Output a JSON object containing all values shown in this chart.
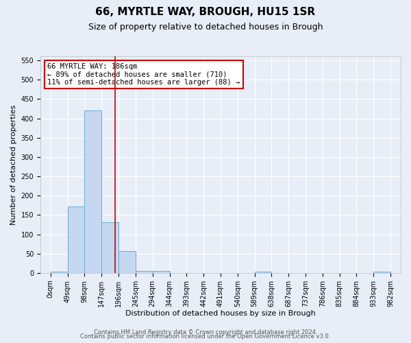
{
  "title1": "66, MYRTLE WAY, BROUGH, HU15 1SR",
  "title2": "Size of property relative to detached houses in Brough",
  "xlabel": "Distribution of detached houses by size in Brough",
  "ylabel": "Number of detached properties",
  "bin_edges": [
    0,
    49,
    98,
    147,
    196,
    245,
    294,
    343,
    392,
    441,
    490,
    539,
    588,
    637,
    686,
    735,
    784,
    833,
    882,
    931,
    980,
    1029
  ],
  "bar_heights": [
    3,
    172,
    420,
    132,
    57,
    5,
    5,
    0,
    0,
    0,
    0,
    0,
    4,
    0,
    0,
    0,
    0,
    0,
    0,
    3,
    0
  ],
  "bar_color": "#c5d8f0",
  "bar_edge_color": "#6aabd2",
  "red_line_x": 186,
  "annotation_text": "66 MYRTLE WAY: 186sqm\n← 89% of detached houses are smaller (710)\n11% of semi-detached houses are larger (88) →",
  "annotation_box_color": "#ffffff",
  "annotation_box_edge_color": "#cc0000",
  "ylim": [
    0,
    560
  ],
  "yticks": [
    0,
    50,
    100,
    150,
    200,
    250,
    300,
    350,
    400,
    450,
    500,
    550
  ],
  "tick_labels": [
    "0sqm",
    "49sqm",
    "98sqm",
    "147sqm",
    "196sqm",
    "245sqm",
    "294sqm",
    "344sqm",
    "393sqm",
    "442sqm",
    "491sqm",
    "540sqm",
    "589sqm",
    "638sqm",
    "687sqm",
    "737sqm",
    "786sqm",
    "835sqm",
    "884sqm",
    "933sqm",
    "982sqm"
  ],
  "footer1": "Contains HM Land Registry data © Crown copyright and database right 2024.",
  "footer2": "Contains public sector information licensed under the Open Government Licence v3.0.",
  "bg_color": "#e8eef8",
  "grid_color": "#ffffff",
  "title1_fontsize": 11,
  "title2_fontsize": 9,
  "annot_fontsize": 7.5,
  "axis_fontsize": 8,
  "tick_fontsize": 7,
  "footer_fontsize": 6
}
